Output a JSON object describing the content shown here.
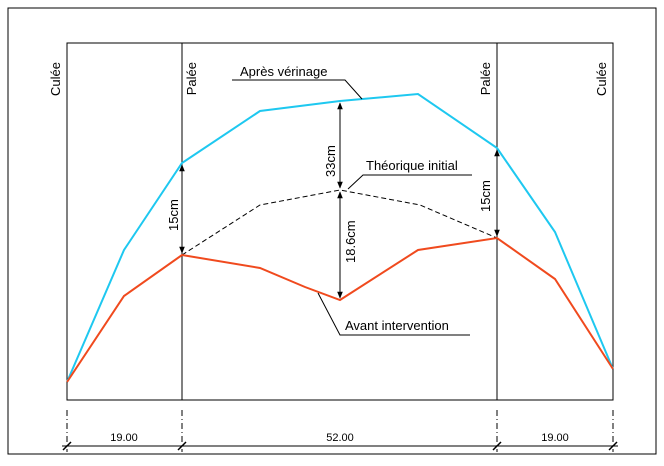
{
  "labels": {
    "culee_left": "Culée",
    "palee_left": "Palée",
    "palee_right": "Palée",
    "culee_right": "Culée",
    "apres_verinage": "Après vérinage",
    "theorique_initial": "Théorique initial",
    "avant_intervention": "Avant intervention",
    "dim_15cm_left": "15cm",
    "dim_33cm": "33cm",
    "dim_18_6cm": "18.6cm",
    "dim_15cm_right": "15cm"
  },
  "spans": {
    "left": "19.00",
    "middle": "52.00",
    "right": "19.00"
  },
  "colors": {
    "apres_verinage": "#1ec8f0",
    "avant_intervention": "#f04a1e",
    "theorique_initial": "#000000",
    "lines": "#000000"
  }
}
